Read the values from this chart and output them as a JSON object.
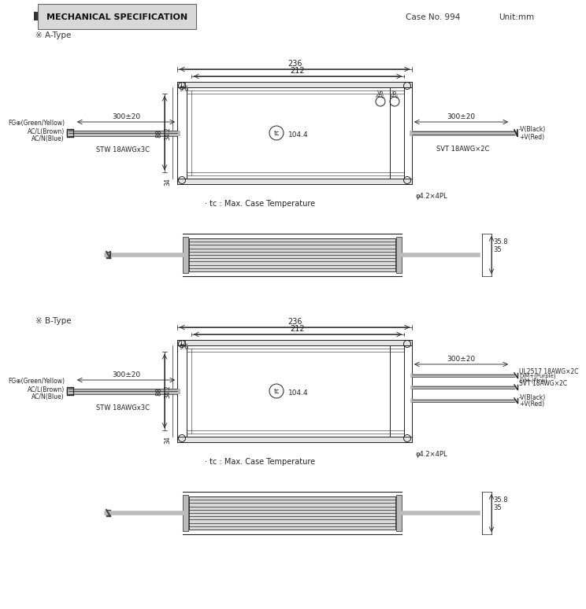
{
  "title": "MECHANICAL SPECIFICATION",
  "case_no": "Case No. 994",
  "unit": "Unit:mm",
  "a_type_label": "※ A-Type",
  "b_type_label": "※ B-Type",
  "bg_color": "#ffffff",
  "dim_236": "236",
  "dim_212": "212",
  "dim_12": "12",
  "dim_9_6": "9.6",
  "dim_34_2": "34.2",
  "dim_88": "88",
  "dim_34": "34",
  "dim_104_4": "104.4",
  "dim_300_20_left": "300±20",
  "dim_300_20_right": "300±20",
  "dim_phi": "φ4.2×4PL",
  "label_fg": "FG⊕(Green/Yellow)",
  "label_acl": "AC/L(Brown)",
  "label_acn": "AC/N(Blue)",
  "label_stw": "STW 18AWGx3C",
  "label_svt_a": "SVT 18AWG×2C",
  "label_tc": "tc",
  "label_tc_note": "· tc : Max. Case Temperature",
  "label_neg_black": "-V(Black)",
  "label_pos_red": "+V(Red)",
  "label_ul2517": "UL2517 18AWG×2C",
  "label_svt_b": "SVT 18AWG×2C",
  "label_dim_plus": "DIM+(Purple)",
  "label_dim_minus": "DIM-(Pink)",
  "dim_35_8": "35.8",
  "dim_35": "35"
}
